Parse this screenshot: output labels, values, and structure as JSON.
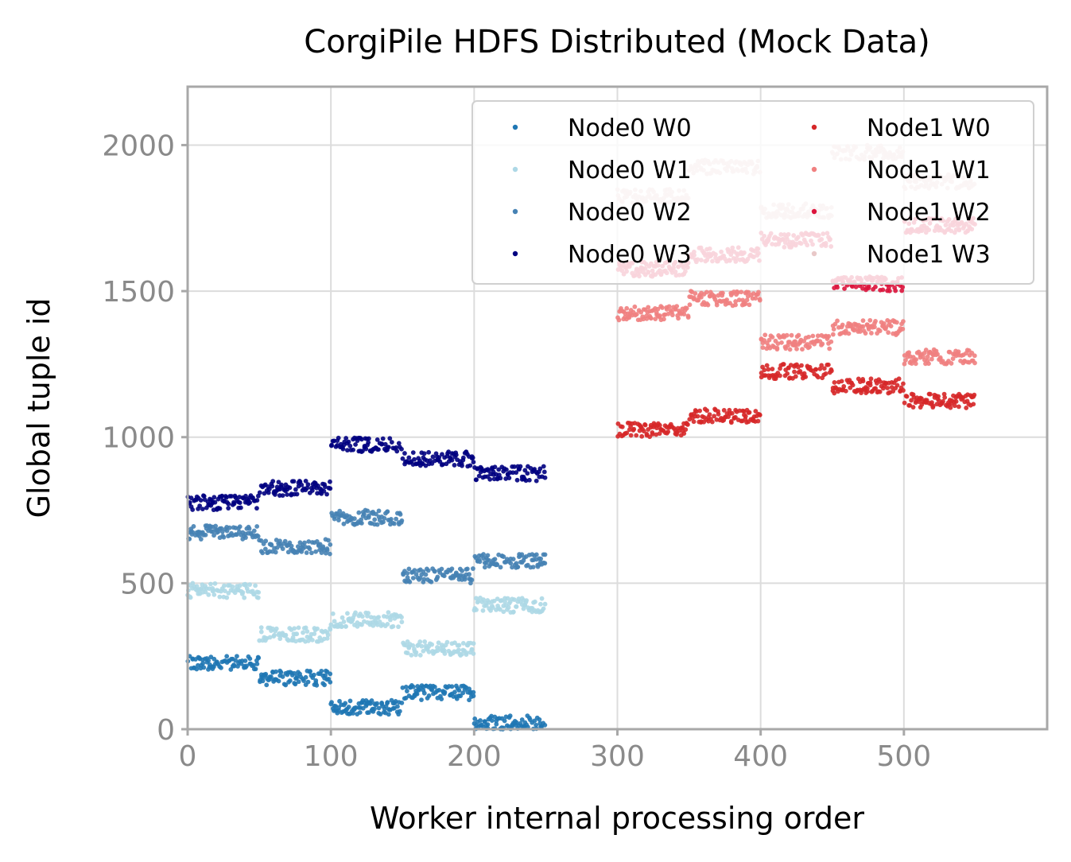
{
  "chart_data": {
    "type": "scatter",
    "title": "CorgiPile HDFS Distributed (Mock Data)",
    "xlabel": "Worker internal processing order",
    "ylabel": "Global tuple id",
    "xlim": [
      0,
      600
    ],
    "ylim": [
      0,
      2200
    ],
    "x_ticks": [
      "0",
      "100",
      "200",
      "300",
      "400",
      "500"
    ],
    "y_ticks": [
      "0",
      "500",
      "1000",
      "1500",
      "2000"
    ],
    "grid": true,
    "legend": {
      "placement": "top-right",
      "columns": 2
    },
    "block_size": 50,
    "jitter": 25,
    "series": [
      {
        "name": "Node0 W0",
        "color": "#1f77b4",
        "x_start": 0,
        "block_centers": [
          225,
          175,
          75,
          125,
          25
        ]
      },
      {
        "name": "Node0 W1",
        "color": "#add8e6",
        "x_start": 0,
        "block_centers": [
          475,
          325,
          375,
          275,
          425
        ]
      },
      {
        "name": "Node0 W2",
        "color": "#4682b4",
        "x_start": 0,
        "block_centers": [
          675,
          625,
          725,
          525,
          575
        ]
      },
      {
        "name": "Node0 W3",
        "color": "#000080",
        "x_start": 0,
        "block_centers": [
          775,
          825,
          975,
          925,
          875
        ]
      },
      {
        "name": "Node1 W0",
        "color": "#d62728",
        "x_start": 300,
        "block_centers": [
          1025,
          1075,
          1225,
          1175,
          1125
        ]
      },
      {
        "name": "Node1 W1",
        "color": "#f08080",
        "x_start": 300,
        "block_centers": [
          1425,
          1475,
          1325,
          1375,
          1275
        ]
      },
      {
        "name": "Node1 W2",
        "color": "#dc143c",
        "x_start": 300,
        "block_centers": [
          1575,
          1625,
          1675,
          1525,
          1725
        ]
      },
      {
        "name": "Node1 W3",
        "color": "#e8c8c8",
        "x_start": 300,
        "block_centers": [
          1825,
          1925,
          1775,
          1975,
          1875
        ]
      }
    ]
  }
}
